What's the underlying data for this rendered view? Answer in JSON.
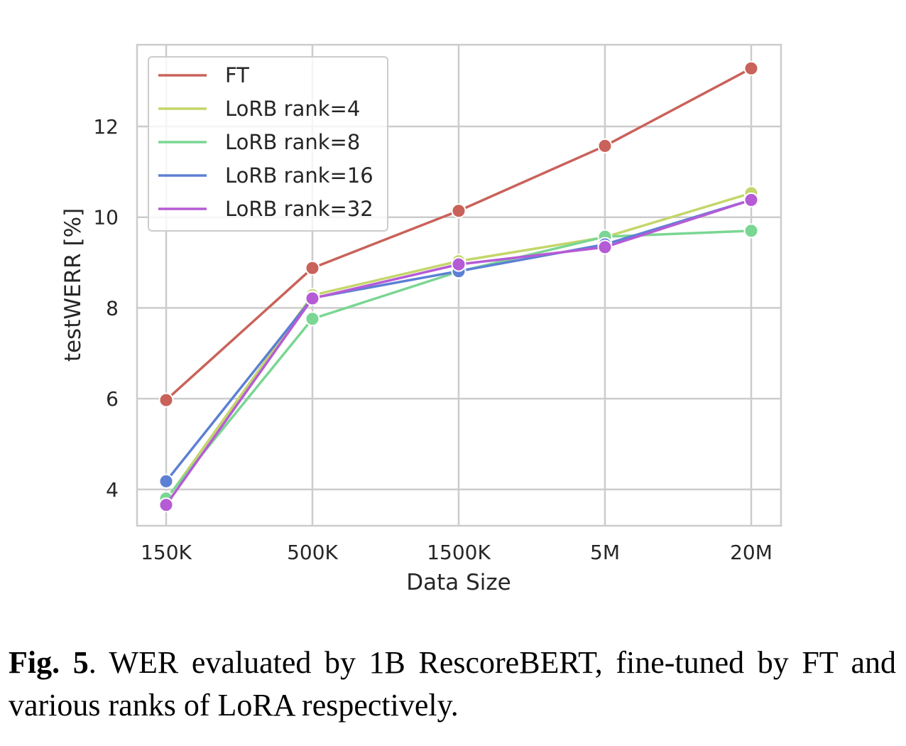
{
  "chart_data": {
    "type": "line",
    "xlabel": "Data Size",
    "ylabel": "testWERR [%]",
    "categories": [
      "150K",
      "500K",
      "1500K",
      "5M",
      "20M"
    ],
    "yticks": [
      4,
      6,
      8,
      10,
      12
    ],
    "ylim": [
      3.2,
      13.8
    ],
    "grid": true,
    "legend_position": "top-left",
    "series": [
      {
        "name": "FT",
        "color": "#c9625a",
        "values": [
          5.97,
          8.88,
          10.14,
          11.57,
          13.28
        ]
      },
      {
        "name": "LoRB rank=4",
        "color": "#c3d66a",
        "values": [
          3.77,
          8.28,
          9.03,
          9.56,
          10.53
        ]
      },
      {
        "name": "LoRB rank=8",
        "color": "#7ad693",
        "values": [
          3.8,
          7.76,
          8.8,
          9.57,
          9.7
        ]
      },
      {
        "name": "LoRB rank=16",
        "color": "#5c80d4",
        "values": [
          4.18,
          8.22,
          8.81,
          9.4,
          10.38
        ]
      },
      {
        "name": "LoRB rank=32",
        "color": "#b55bd6",
        "values": [
          3.66,
          8.21,
          8.96,
          9.34,
          10.38
        ]
      }
    ]
  },
  "caption": {
    "label": "Fig. 5",
    "text": ".  WER evaluated by 1B RescoreBERT, fine-tuned by FT and various ranks of LoRA respectively."
  }
}
